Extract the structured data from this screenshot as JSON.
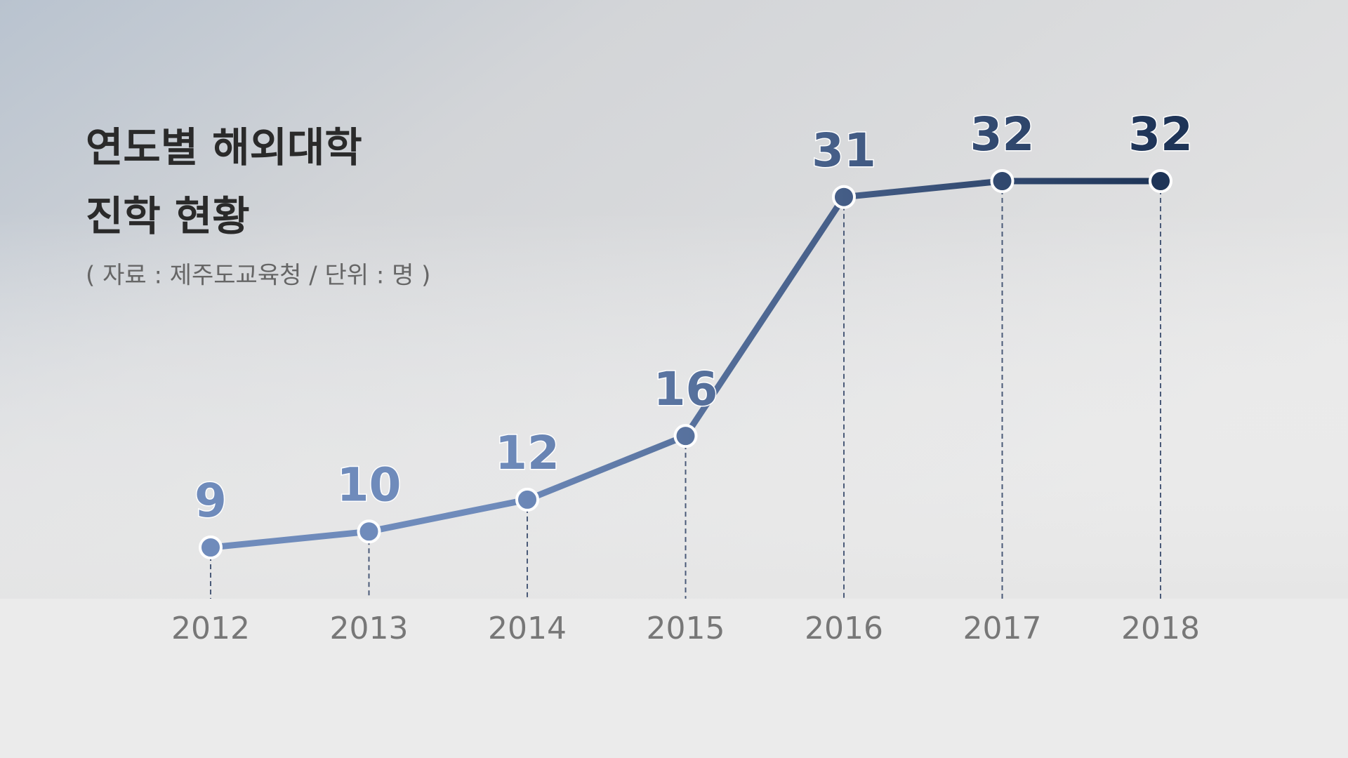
{
  "chart_data": {
    "type": "line",
    "title": [
      "연도별 해외대학",
      "진학 현황"
    ],
    "subtitle": "( 자료 : 제주도교육청 / 단위 : 명 )",
    "categories": [
      "2012",
      "2013",
      "2014",
      "2015",
      "2016",
      "2017",
      "2018"
    ],
    "values": [
      9,
      10,
      12,
      16,
      31,
      32,
      32
    ],
    "color": [
      "#6f8bbb",
      "#1e3457"
    ],
    "grid": false
  }
}
